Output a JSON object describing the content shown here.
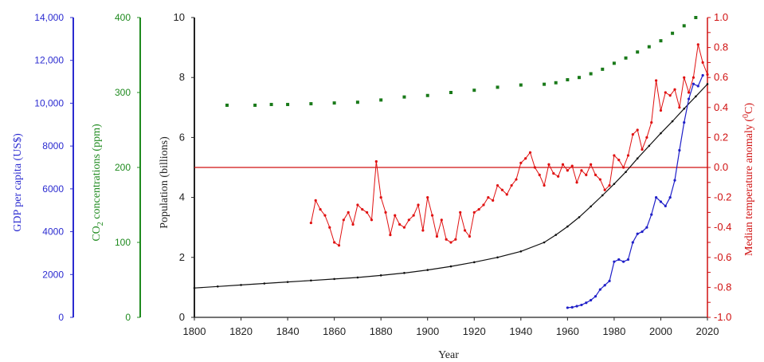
{
  "chart_data": {
    "type": "line",
    "xlabel": "Year",
    "x_range": [
      1800,
      2020
    ],
    "x_ticks": [
      "1800",
      "1820",
      "1840",
      "1860",
      "1880",
      "1900",
      "1920",
      "1940",
      "1960",
      "1980",
      "2000",
      "2020"
    ],
    "axes": {
      "gdp": {
        "label": "GDP per capita (US$)",
        "range": [
          0,
          14000
        ],
        "color": "#2b2bd0",
        "ticks": [
          "0",
          "2000",
          "4000",
          "6000",
          "8000",
          "10,000",
          "12,000",
          "14,000"
        ]
      },
      "co2": {
        "label_pre": "CO",
        "label_sub": "2",
        "label_post": " concentrations (ppm)",
        "range": [
          0,
          400
        ],
        "color": "#1e8a1e",
        "ticks": [
          "0",
          "100",
          "200",
          "300",
          "400"
        ]
      },
      "population": {
        "label": "Population (billions)",
        "range": [
          0,
          10
        ],
        "color": "#222222",
        "ticks": [
          "0",
          "2",
          "4",
          "6",
          "8",
          "10"
        ]
      },
      "temperature": {
        "label_pre": "Median temperature anomaly (",
        "label_sup": "0",
        "label_post": "C)",
        "range": [
          -1.0,
          1.0
        ],
        "color": "#d01010",
        "ticks": [
          "-1.0",
          "-0.9",
          "-0.8",
          "-0.7",
          "-0.6",
          "-0.5",
          "-0.4",
          "-0.3",
          "-0.2",
          "-0.1",
          "0.0",
          "0.1",
          "0.2",
          "0.3",
          "0.4",
          "0.5",
          "0.6",
          "0.7",
          "0.8",
          "0.9",
          "1.0"
        ],
        "tick_labels": [
          "-1.0",
          "-0.8",
          "-0.6",
          "-0.4",
          "-0.2",
          "0.0",
          "0.2",
          "0.4",
          "0.6",
          "0.8",
          "1.0"
        ],
        "reference_line": 0.0
      }
    },
    "series": [
      {
        "key": "population",
        "axis": "population",
        "color": "#111111",
        "x": [
          1800,
          1810,
          1820,
          1830,
          1840,
          1850,
          1860,
          1870,
          1880,
          1890,
          1900,
          1910,
          1920,
          1930,
          1940,
          1950,
          1955,
          1960,
          1965,
          1970,
          1975,
          1980,
          1985,
          1990,
          1995,
          2000,
          2005,
          2010,
          2015,
          2020
        ],
        "values": [
          0.98,
          1.03,
          1.08,
          1.13,
          1.18,
          1.23,
          1.28,
          1.33,
          1.4,
          1.48,
          1.58,
          1.7,
          1.84,
          2.0,
          2.2,
          2.5,
          2.75,
          3.03,
          3.34,
          3.7,
          4.07,
          4.45,
          4.85,
          5.3,
          5.72,
          6.14,
          6.54,
          6.96,
          7.37,
          7.78
        ]
      },
      {
        "key": "co2",
        "axis": "co2",
        "color": "#1a7a1a",
        "x": [
          1814,
          1826,
          1833,
          1840,
          1850,
          1860,
          1870,
          1880,
          1890,
          1900,
          1910,
          1920,
          1930,
          1940,
          1950,
          1955,
          1960,
          1965,
          1970,
          1975,
          1980,
          1985,
          1990,
          1995,
          2000,
          2005,
          2010,
          2015
        ],
        "values": [
          283,
          283,
          284,
          284,
          285,
          286,
          287,
          290,
          294,
          296,
          300,
          303,
          307,
          310,
          311,
          313,
          317,
          320,
          325,
          331,
          339,
          346,
          354,
          361,
          369,
          379,
          389,
          400
        ]
      },
      {
        "key": "gdp",
        "axis": "gdp",
        "color": "#1f1fc8",
        "x": [
          1960,
          1962,
          1964,
          1966,
          1968,
          1970,
          1972,
          1974,
          1976,
          1978,
          1980,
          1982,
          1984,
          1986,
          1988,
          1990,
          1992,
          1994,
          1996,
          1998,
          2000,
          2002,
          2004,
          2006,
          2008,
          2010,
          2012,
          2014,
          2016,
          2018
        ],
        "values": [
          450,
          470,
          520,
          580,
          680,
          800,
          980,
          1300,
          1500,
          1700,
          2600,
          2700,
          2600,
          2700,
          3500,
          3900,
          4000,
          4200,
          4800,
          5600,
          5400,
          5200,
          5600,
          6400,
          7800,
          9100,
          10200,
          10900,
          10800,
          11300
        ]
      },
      {
        "key": "temperature",
        "axis": "temperature",
        "color": "#e01010",
        "x": [
          1850,
          1852,
          1854,
          1856,
          1858,
          1860,
          1862,
          1864,
          1866,
          1868,
          1870,
          1872,
          1874,
          1876,
          1878,
          1880,
          1882,
          1884,
          1886,
          1888,
          1890,
          1892,
          1894,
          1896,
          1898,
          1900,
          1902,
          1904,
          1906,
          1908,
          1910,
          1912,
          1914,
          1916,
          1918,
          1920,
          1922,
          1924,
          1926,
          1928,
          1930,
          1932,
          1934,
          1936,
          1938,
          1940,
          1942,
          1944,
          1946,
          1948,
          1950,
          1952,
          1954,
          1956,
          1958,
          1960,
          1962,
          1964,
          1966,
          1968,
          1970,
          1972,
          1974,
          1976,
          1978,
          1980,
          1982,
          1984,
          1986,
          1988,
          1990,
          1992,
          1994,
          1996,
          1998,
          2000,
          2002,
          2004,
          2006,
          2008,
          2010,
          2012,
          2014,
          2016,
          2018,
          2020
        ],
        "values": [
          -0.37,
          -0.22,
          -0.28,
          -0.32,
          -0.4,
          -0.5,
          -0.52,
          -0.35,
          -0.3,
          -0.38,
          -0.25,
          -0.28,
          -0.3,
          -0.35,
          0.04,
          -0.2,
          -0.3,
          -0.45,
          -0.32,
          -0.38,
          -0.4,
          -0.35,
          -0.32,
          -0.25,
          -0.42,
          -0.2,
          -0.32,
          -0.46,
          -0.35,
          -0.48,
          -0.5,
          -0.48,
          -0.3,
          -0.42,
          -0.46,
          -0.3,
          -0.28,
          -0.25,
          -0.2,
          -0.22,
          -0.12,
          -0.15,
          -0.18,
          -0.12,
          -0.08,
          0.03,
          0.06,
          0.1,
          0.0,
          -0.05,
          -0.12,
          0.02,
          -0.04,
          -0.06,
          0.02,
          -0.02,
          0.01,
          -0.1,
          -0.02,
          -0.05,
          0.02,
          -0.05,
          -0.08,
          -0.15,
          -0.12,
          0.08,
          0.05,
          0.0,
          0.08,
          0.22,
          0.25,
          0.12,
          0.2,
          0.3,
          0.58,
          0.38,
          0.5,
          0.48,
          0.52,
          0.4,
          0.6,
          0.5,
          0.6,
          0.82,
          0.7,
          0.62
        ]
      }
    ]
  }
}
